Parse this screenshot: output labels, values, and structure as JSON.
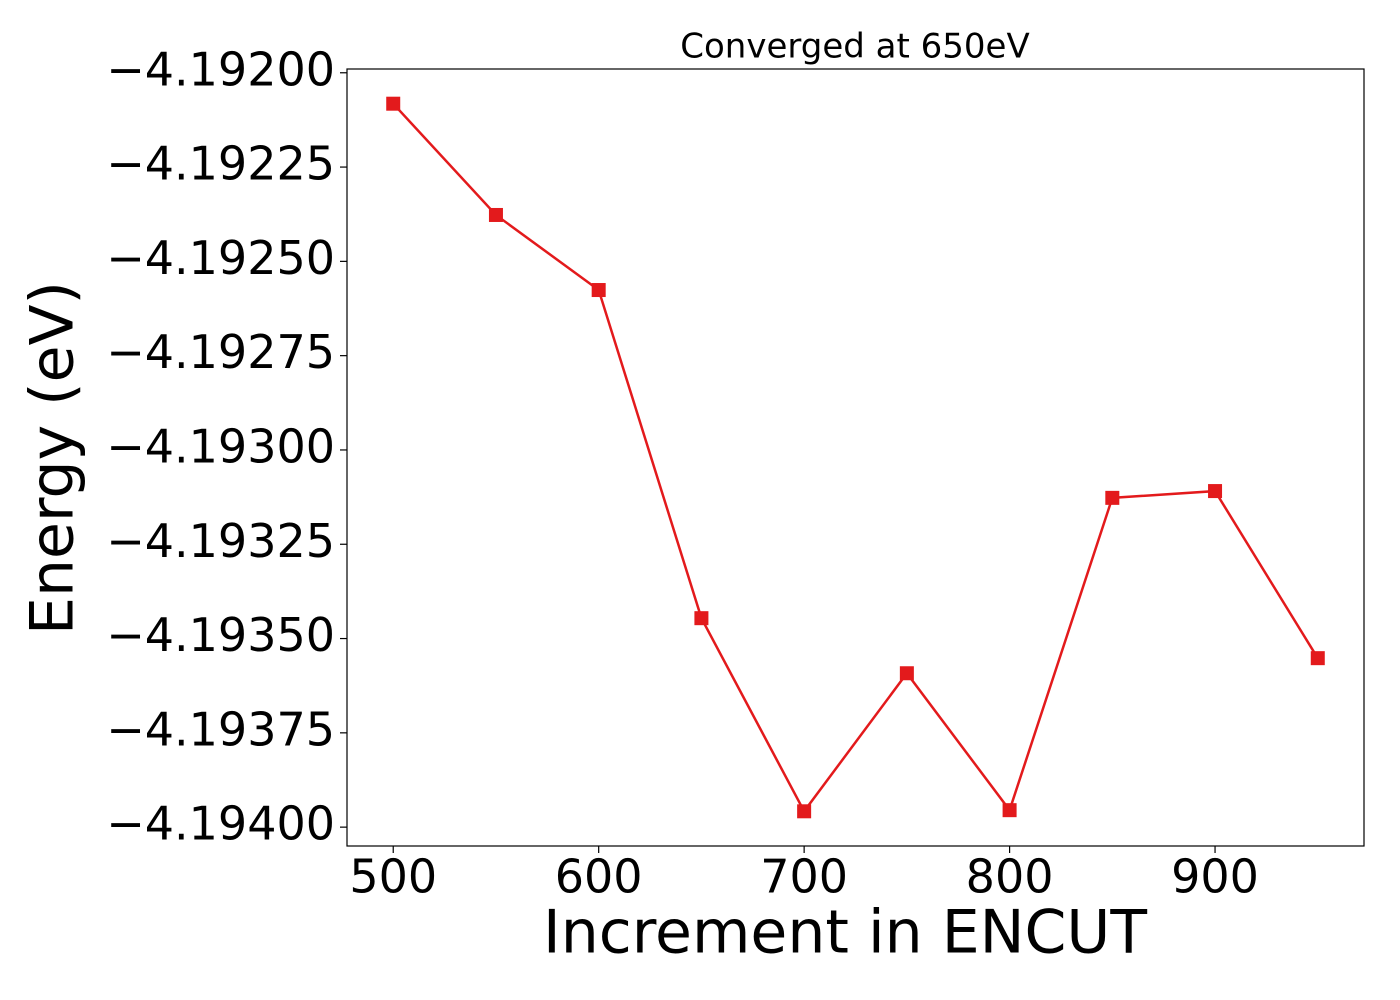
{
  "chart_data": {
    "type": "line",
    "title": "Converged at 650eV",
    "x_label": "Increment in ENCUT",
    "y_label": "Energy (eV)",
    "x": [
      500,
      550,
      600,
      650,
      700,
      750,
      800,
      850,
      900,
      950
    ],
    "series": [
      {
        "color": "#e31a1c",
        "marker": "square",
        "values": [
          -4.192082,
          -4.192377,
          -4.192576,
          -4.193446,
          -4.193958,
          -4.193592,
          -4.193955,
          -4.193127,
          -4.193109,
          -4.193552
        ]
      }
    ],
    "xlim": [
      477.5,
      972.5
    ],
    "xticks": [
      500,
      600,
      700,
      800,
      900
    ],
    "ylim": [
      -4.19405,
      -4.19199
    ],
    "yticks": [
      {
        "value": -4.192,
        "label": "−4.19200"
      },
      {
        "value": -4.19225,
        "label": "−4.19225"
      },
      {
        "value": -4.1925,
        "label": "−4.19250"
      },
      {
        "value": -4.19275,
        "label": "−4.19275"
      },
      {
        "value": -4.193,
        "label": "−4.19300"
      },
      {
        "value": -4.19325,
        "label": "−4.19325"
      },
      {
        "value": -4.1935,
        "label": "−4.19350"
      },
      {
        "value": -4.19375,
        "label": "−4.19375"
      },
      {
        "value": -4.194,
        "label": "−4.19400"
      }
    ],
    "grid": false
  }
}
